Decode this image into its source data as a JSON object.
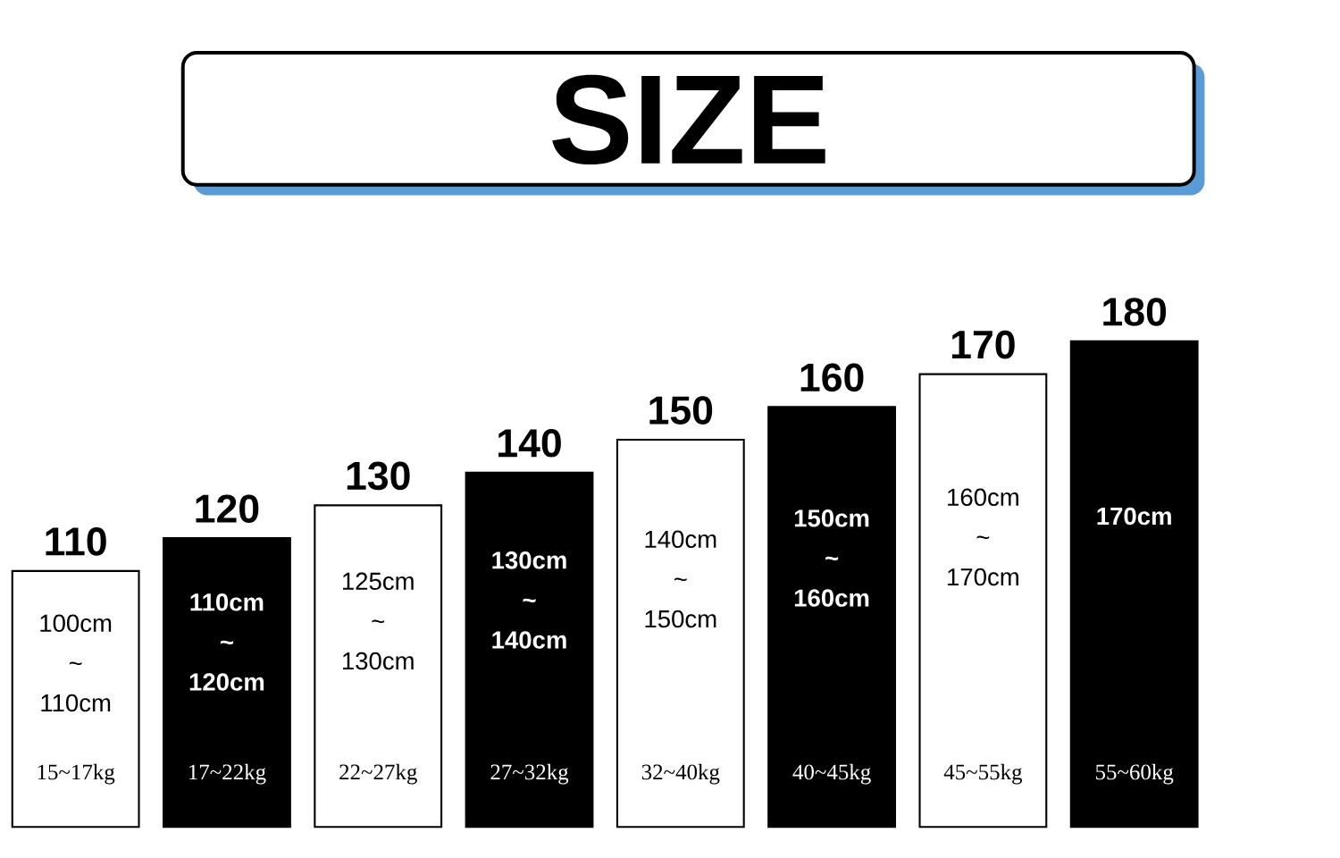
{
  "chart_data": {
    "type": "bar",
    "title": "SIZE",
    "categories": [
      "100cm ~ 110cm",
      "110cm ~ 120cm",
      "125cm ~ 130cm",
      "130cm ~ 140cm",
      "140cm ~ 150cm",
      "150cm ~ 160cm",
      "160cm ~ 170cm",
      "170cm"
    ],
    "values": [
      110,
      120,
      130,
      140,
      150,
      160,
      170,
      180
    ],
    "ylim": [
      32,
      180
    ],
    "data_labels": true,
    "colors": [
      "#ffffff",
      "#000000",
      "#ffffff",
      "#000000",
      "#ffffff",
      "#000000",
      "#ffffff",
      "#000000"
    ],
    "annotations": [
      "15~17kg",
      "17~22kg",
      "22~27kg",
      "27~32kg",
      "32~40kg",
      "40~45kg",
      "45~55kg",
      "55~60kg"
    ]
  }
}
